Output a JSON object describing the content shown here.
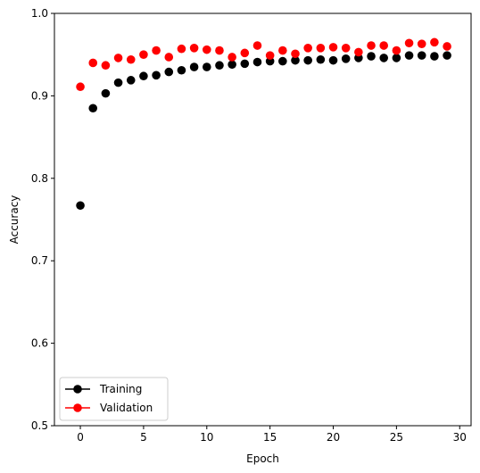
{
  "chart_data": {
    "type": "scatter",
    "title": "",
    "xlabel": "Epoch",
    "ylabel": "Accuracy",
    "xlim": [
      -2.05,
      30.9
    ],
    "ylim": [
      0.5,
      1.0
    ],
    "xticks": [
      0,
      5,
      10,
      15,
      20,
      25,
      30
    ],
    "yticks": [
      0.5,
      0.6,
      0.7,
      0.8,
      0.9,
      1.0
    ],
    "xtick_labels": [
      "0",
      "5",
      "10",
      "15",
      "20",
      "25",
      "30"
    ],
    "ytick_labels": [
      "0.5",
      "0.6",
      "0.7",
      "0.8",
      "0.9",
      "1.0"
    ],
    "grid": false,
    "legend_position": "lower-left",
    "x": [
      0,
      1,
      2,
      3,
      4,
      5,
      6,
      7,
      8,
      9,
      10,
      11,
      12,
      13,
      14,
      15,
      16,
      17,
      18,
      19,
      20,
      21,
      22,
      23,
      24,
      25,
      26,
      27,
      28,
      29
    ],
    "series": [
      {
        "name": "Training",
        "color": "#000000",
        "values": [
          0.767,
          0.885,
          0.903,
          0.916,
          0.919,
          0.924,
          0.925,
          0.929,
          0.931,
          0.935,
          0.935,
          0.937,
          0.938,
          0.939,
          0.941,
          0.942,
          0.942,
          0.943,
          0.943,
          0.944,
          0.943,
          0.945,
          0.946,
          0.948,
          0.946,
          0.946,
          0.949,
          0.949,
          0.948,
          0.949
        ]
      },
      {
        "name": "Validation",
        "color": "#ff0000",
        "values": [
          0.911,
          0.94,
          0.937,
          0.946,
          0.944,
          0.95,
          0.955,
          0.947,
          0.957,
          0.958,
          0.956,
          0.955,
          0.947,
          0.952,
          0.961,
          0.949,
          0.955,
          0.951,
          0.958,
          0.958,
          0.959,
          0.958,
          0.953,
          0.961,
          0.961,
          0.955,
          0.964,
          0.963,
          0.965,
          0.96
        ]
      }
    ]
  }
}
